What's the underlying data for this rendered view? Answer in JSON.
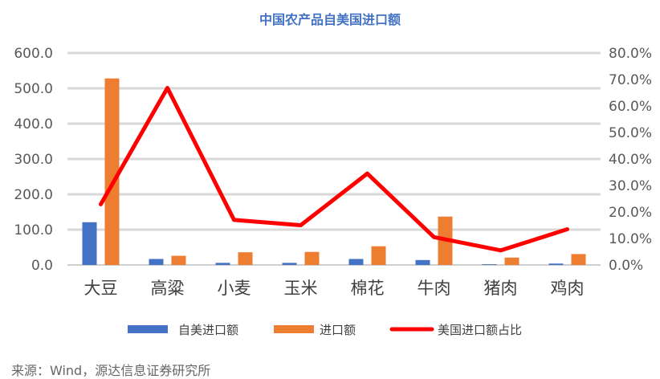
{
  "title": "中国农产品自美国进口额",
  "source": "来源：Wind，源达信息证券研究所",
  "colors": {
    "us_import": "#4472c4",
    "total_import": "#ed7d31",
    "share": "#ff0000",
    "grid": "#d9d9d9",
    "title": "#4472c4"
  },
  "chart_data": {
    "type": "bar",
    "title": "中国农产品自美国进口额",
    "categories": [
      "大豆",
      "高粱",
      "小麦",
      "玉米",
      "棉花",
      "牛肉",
      "猪肉",
      "鸡肉"
    ],
    "series": [
      {
        "name": "自美进口额",
        "type": "bar",
        "axis": "left",
        "values": [
          121,
          17,
          6,
          6,
          17,
          14,
          2,
          4
        ]
      },
      {
        "name": "进口额",
        "type": "bar",
        "axis": "left",
        "values": [
          528,
          26,
          36,
          37,
          53,
          137,
          21,
          31
        ]
      },
      {
        "name": "美国进口额占比",
        "type": "line",
        "axis": "right",
        "values": [
          0.229,
          0.668,
          0.17,
          0.15,
          0.345,
          0.105,
          0.055,
          0.135
        ]
      }
    ],
    "left_axis": {
      "ylim": [
        0,
        600
      ],
      "ticks": [
        "0.0",
        "100.0",
        "200.0",
        "300.0",
        "400.0",
        "500.0",
        "600.0"
      ]
    },
    "right_axis": {
      "ylim": [
        0,
        0.8
      ],
      "ticks": [
        "0.0%",
        "10.0%",
        "20.0%",
        "30.0%",
        "40.0%",
        "50.0%",
        "60.0%",
        "70.0%",
        "80.0%"
      ]
    },
    "xlabel": "",
    "ylabel": "",
    "grid": true,
    "legend_position": "bottom"
  }
}
